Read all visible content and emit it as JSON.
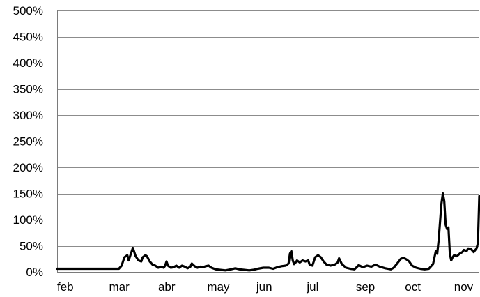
{
  "chart_data": {
    "type": "line",
    "title": "",
    "xlabel": "",
    "ylabel": "",
    "x_unit": "day",
    "xlim": [
      0,
      301
    ],
    "ylim": [
      0,
      500
    ],
    "y_ticks": [
      {
        "value": 0,
        "label": "0%"
      },
      {
        "value": 50,
        "label": "50%"
      },
      {
        "value": 100,
        "label": "100%"
      },
      {
        "value": 150,
        "label": "150%"
      },
      {
        "value": 200,
        "label": "200%"
      },
      {
        "value": 250,
        "label": "250%"
      },
      {
        "value": 300,
        "label": "300%"
      },
      {
        "value": 350,
        "label": "350%"
      },
      {
        "value": 400,
        "label": "400%"
      },
      {
        "value": 450,
        "label": "450%"
      },
      {
        "value": 500,
        "label": "500%"
      }
    ],
    "x_ticks": [
      {
        "value": 0,
        "label": "feb"
      },
      {
        "value": 37,
        "label": "mar"
      },
      {
        "value": 72,
        "label": "abr"
      },
      {
        "value": 107,
        "label": "may"
      },
      {
        "value": 142,
        "label": "jun"
      },
      {
        "value": 178,
        "label": "jul"
      },
      {
        "value": 213,
        "label": "sep"
      },
      {
        "value": 248,
        "label": "oct"
      },
      {
        "value": 283,
        "label": "nov"
      }
    ],
    "grid": {
      "horizontal": true,
      "vertical": false
    },
    "legend": "none",
    "series": [
      {
        "color": "#000000",
        "points": [
          [
            0,
            6
          ],
          [
            44,
            6
          ],
          [
            46,
            12
          ],
          [
            48,
            28
          ],
          [
            50,
            32
          ],
          [
            51,
            22
          ],
          [
            53,
            38
          ],
          [
            54,
            46
          ],
          [
            56,
            30
          ],
          [
            58,
            22
          ],
          [
            60,
            20
          ],
          [
            61,
            28
          ],
          [
            63,
            32
          ],
          [
            64,
            30
          ],
          [
            66,
            20
          ],
          [
            68,
            14
          ],
          [
            70,
            12
          ],
          [
            72,
            8
          ],
          [
            74,
            10
          ],
          [
            76,
            8
          ],
          [
            77,
            12
          ],
          [
            78,
            20
          ],
          [
            79,
            12
          ],
          [
            81,
            8
          ],
          [
            83,
            9
          ],
          [
            85,
            12
          ],
          [
            87,
            8
          ],
          [
            89,
            12
          ],
          [
            91,
            10
          ],
          [
            93,
            7
          ],
          [
            95,
            10
          ],
          [
            96,
            16
          ],
          [
            98,
            11
          ],
          [
            100,
            8
          ],
          [
            102,
            10
          ],
          [
            104,
            9
          ],
          [
            106,
            11
          ],
          [
            108,
            12
          ],
          [
            110,
            8
          ],
          [
            113,
            5
          ],
          [
            116,
            4
          ],
          [
            120,
            3
          ],
          [
            124,
            5
          ],
          [
            127,
            7
          ],
          [
            130,
            5
          ],
          [
            133,
            4
          ],
          [
            137,
            3
          ],
          [
            140,
            4
          ],
          [
            143,
            6
          ],
          [
            147,
            8
          ],
          [
            151,
            8
          ],
          [
            154,
            6
          ],
          [
            157,
            9
          ],
          [
            160,
            11
          ],
          [
            163,
            12
          ],
          [
            165,
            16
          ],
          [
            166,
            35
          ],
          [
            167,
            40
          ],
          [
            168,
            22
          ],
          [
            169,
            15
          ],
          [
            170,
            18
          ],
          [
            171,
            22
          ],
          [
            173,
            18
          ],
          [
            175,
            22
          ],
          [
            177,
            20
          ],
          [
            179,
            22
          ],
          [
            180,
            14
          ],
          [
            182,
            12
          ],
          [
            184,
            28
          ],
          [
            186,
            32
          ],
          [
            188,
            28
          ],
          [
            190,
            20
          ],
          [
            192,
            14
          ],
          [
            195,
            12
          ],
          [
            198,
            14
          ],
          [
            200,
            18
          ],
          [
            201,
            26
          ],
          [
            203,
            15
          ],
          [
            206,
            8
          ],
          [
            209,
            6
          ],
          [
            212,
            5
          ],
          [
            215,
            13
          ],
          [
            218,
            9
          ],
          [
            221,
            12
          ],
          [
            224,
            10
          ],
          [
            227,
            14
          ],
          [
            230,
            10
          ],
          [
            234,
            7
          ],
          [
            238,
            5
          ],
          [
            240,
            8
          ],
          [
            243,
            18
          ],
          [
            245,
            25
          ],
          [
            247,
            27
          ],
          [
            249,
            24
          ],
          [
            251,
            20
          ],
          [
            253,
            12
          ],
          [
            256,
            8
          ],
          [
            259,
            6
          ],
          [
            262,
            5
          ],
          [
            265,
            6
          ],
          [
            268,
            15
          ],
          [
            270,
            40
          ],
          [
            271,
            35
          ],
          [
            272,
            60
          ],
          [
            273,
            95
          ],
          [
            274,
            130
          ],
          [
            275,
            150
          ],
          [
            276,
            135
          ],
          [
            277,
            90
          ],
          [
            278,
            82
          ],
          [
            279,
            85
          ],
          [
            280,
            35
          ],
          [
            281,
            22
          ],
          [
            282,
            28
          ],
          [
            283,
            32
          ],
          [
            285,
            30
          ],
          [
            287,
            35
          ],
          [
            289,
            38
          ],
          [
            290,
            42
          ],
          [
            292,
            40
          ],
          [
            293,
            45
          ],
          [
            295,
            44
          ],
          [
            297,
            38
          ],
          [
            299,
            45
          ],
          [
            300,
            55
          ],
          [
            301,
            145
          ]
        ]
      }
    ]
  }
}
